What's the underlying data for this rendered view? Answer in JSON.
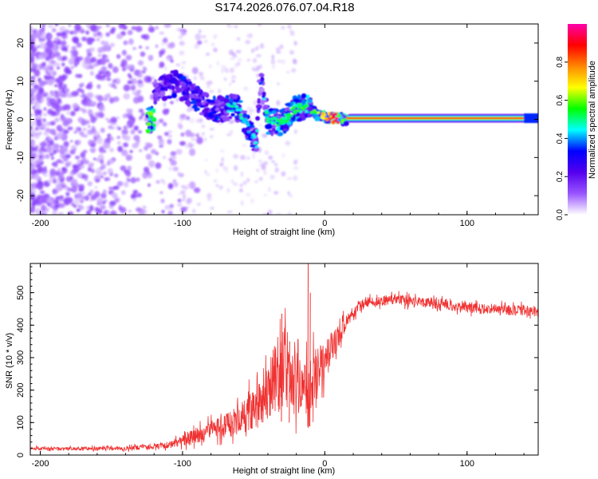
{
  "title": "S174.2026.076.07.04.R18",
  "colors": {
    "signal": "#f03232",
    "axis": "#000000",
    "background": "#ffffff"
  },
  "chart_data": [
    {
      "type": "heatmap",
      "name": "spectrogram",
      "xlabel": "Height of straight line (km)",
      "ylabel": "Frequency (Hz)",
      "xlim": [
        -207,
        150
      ],
      "ylim": [
        -25,
        25
      ],
      "xticks": [
        -200,
        -100,
        0,
        100
      ],
      "yticks": [
        -20,
        -10,
        0,
        10,
        20
      ],
      "colorbar": {
        "label": "Normalized spectral amplitude",
        "range": [
          0,
          1
        ],
        "ticks": [
          "0.0",
          "0.2",
          "0.4",
          "0.6",
          "0.8"
        ],
        "tick_values": [
          0.0,
          0.2,
          0.4,
          0.6,
          0.8
        ],
        "colormap": [
          "#ffffff",
          "#9955ff",
          "#5500ee",
          "#0000ff",
          "#00ffff",
          "#00ff00",
          "#ffff00",
          "#ff8800",
          "#ff0000",
          "#ff00aa"
        ]
      },
      "ridge": {
        "description_free": true,
        "points": [
          {
            "x": -120,
            "y": 7.5,
            "a": 0.22
          },
          {
            "x": -105,
            "y": 9.5,
            "a": 0.28
          },
          {
            "x": -95,
            "y": 7.0,
            "a": 0.3
          },
          {
            "x": -85,
            "y": 4.0,
            "a": 0.28
          },
          {
            "x": -75,
            "y": 2.5,
            "a": 0.3
          },
          {
            "x": -62,
            "y": 3.5,
            "a": 0.32
          },
          {
            "x": -55,
            "y": -1.5,
            "a": 0.3
          },
          {
            "x": -48,
            "y": -6.5,
            "a": 0.3
          },
          {
            "x": -45,
            "y": 10.5,
            "a": 0.18
          },
          {
            "x": -40,
            "y": -0.5,
            "a": 0.34
          },
          {
            "x": -30,
            "y": -1.0,
            "a": 0.36
          },
          {
            "x": -22,
            "y": 2.5,
            "a": 0.38
          },
          {
            "x": -13,
            "y": 3.5,
            "a": 0.4
          },
          {
            "x": -5,
            "y": 1.0,
            "a": 0.45
          },
          {
            "x": 5,
            "y": 0.3,
            "a": 0.7
          },
          {
            "x": 10,
            "y": 0.3,
            "a": 0.9
          }
        ],
        "line_from": 15,
        "line_to": 150,
        "line_amplitude": 0.9
      }
    },
    {
      "type": "line",
      "name": "snr",
      "xlabel": "Height of straight line (km)",
      "ylabel": "SNR (10 * v/v)",
      "xlim": [
        -207,
        150
      ],
      "ylim": [
        0,
        590
      ],
      "xticks": [
        -200,
        -100,
        0,
        100
      ],
      "yticks": [
        0,
        100,
        200,
        300,
        400,
        500
      ],
      "series": [
        {
          "name": "SNR",
          "color": "#f03232",
          "x": [
            -207,
            -200,
            -180,
            -160,
            -140,
            -120,
            -110,
            -100,
            -90,
            -80,
            -70,
            -60,
            -50,
            -45,
            -40,
            -35,
            -30,
            -25,
            -20,
            -15,
            -10,
            -5,
            0,
            5,
            10,
            15,
            20,
            25,
            30,
            40,
            50,
            60,
            70,
            80,
            90,
            100,
            110,
            120,
            130,
            140,
            150
          ],
          "values": [
            20,
            20,
            20,
            20,
            21,
            25,
            30,
            45,
            60,
            75,
            90,
            110,
            140,
            160,
            190,
            230,
            260,
            250,
            230,
            220,
            220,
            250,
            290,
            330,
            370,
            410,
            440,
            460,
            470,
            475,
            480,
            475,
            470,
            465,
            460,
            455,
            450,
            450,
            445,
            445,
            440
          ],
          "noise": [
            6,
            6,
            7,
            7,
            8,
            10,
            14,
            22,
            30,
            36,
            45,
            60,
            80,
            90,
            110,
            150,
            180,
            160,
            140,
            120,
            110,
            100,
            80,
            60,
            45,
            30,
            22,
            20,
            20,
            20,
            20,
            20,
            20,
            20,
            20,
            20,
            20,
            20,
            20,
            20,
            20
          ],
          "spikes": [
            {
              "x": -30.5,
              "y": 435
            },
            {
              "x": -25,
              "y": 350
            },
            {
              "x": -12,
              "y": 590
            },
            {
              "x": -10.5,
              "y": 500
            }
          ]
        }
      ]
    }
  ]
}
